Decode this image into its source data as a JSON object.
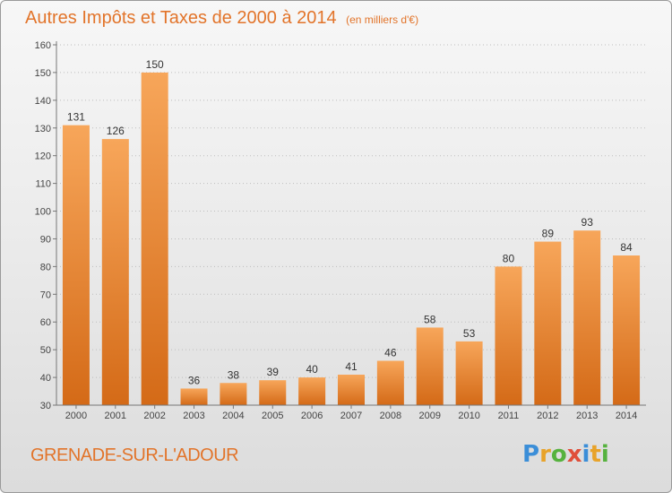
{
  "header": {
    "title": "Autres Impôts et Taxes de 2000 à 2014",
    "unit": "(en milliers d'€)"
  },
  "footer": {
    "city": "GRENADE-SUR-L'ADOUR",
    "logo": {
      "text": "Proxiti",
      "letter_colors": [
        "#3b8ed8",
        "#e8a32a",
        "#56b23e",
        "#e04f3a",
        "#3b8ed8",
        "#e8a32a",
        "#56b23e"
      ]
    }
  },
  "colors": {
    "accent": "#e2742a",
    "bar_top": "#f7a65a",
    "bar_bottom": "#d46a17",
    "grid": "#bdbdbd",
    "axis_text": "#444444"
  },
  "chart_data": {
    "type": "bar",
    "title": "Autres Impôts et Taxes de 2000 à 2014",
    "categories": [
      "2000",
      "2001",
      "2002",
      "2003",
      "2004",
      "2005",
      "2006",
      "2007",
      "2008",
      "2009",
      "2010",
      "2011",
      "2012",
      "2013",
      "2014"
    ],
    "values": [
      131,
      126,
      150,
      36,
      38,
      39,
      40,
      41,
      46,
      58,
      53,
      80,
      89,
      93,
      84
    ],
    "ylim": [
      30,
      160
    ],
    "yticks": [
      30,
      40,
      50,
      60,
      70,
      80,
      90,
      100,
      110,
      120,
      130,
      140,
      150,
      160
    ],
    "grid": true,
    "data_labels": true
  }
}
